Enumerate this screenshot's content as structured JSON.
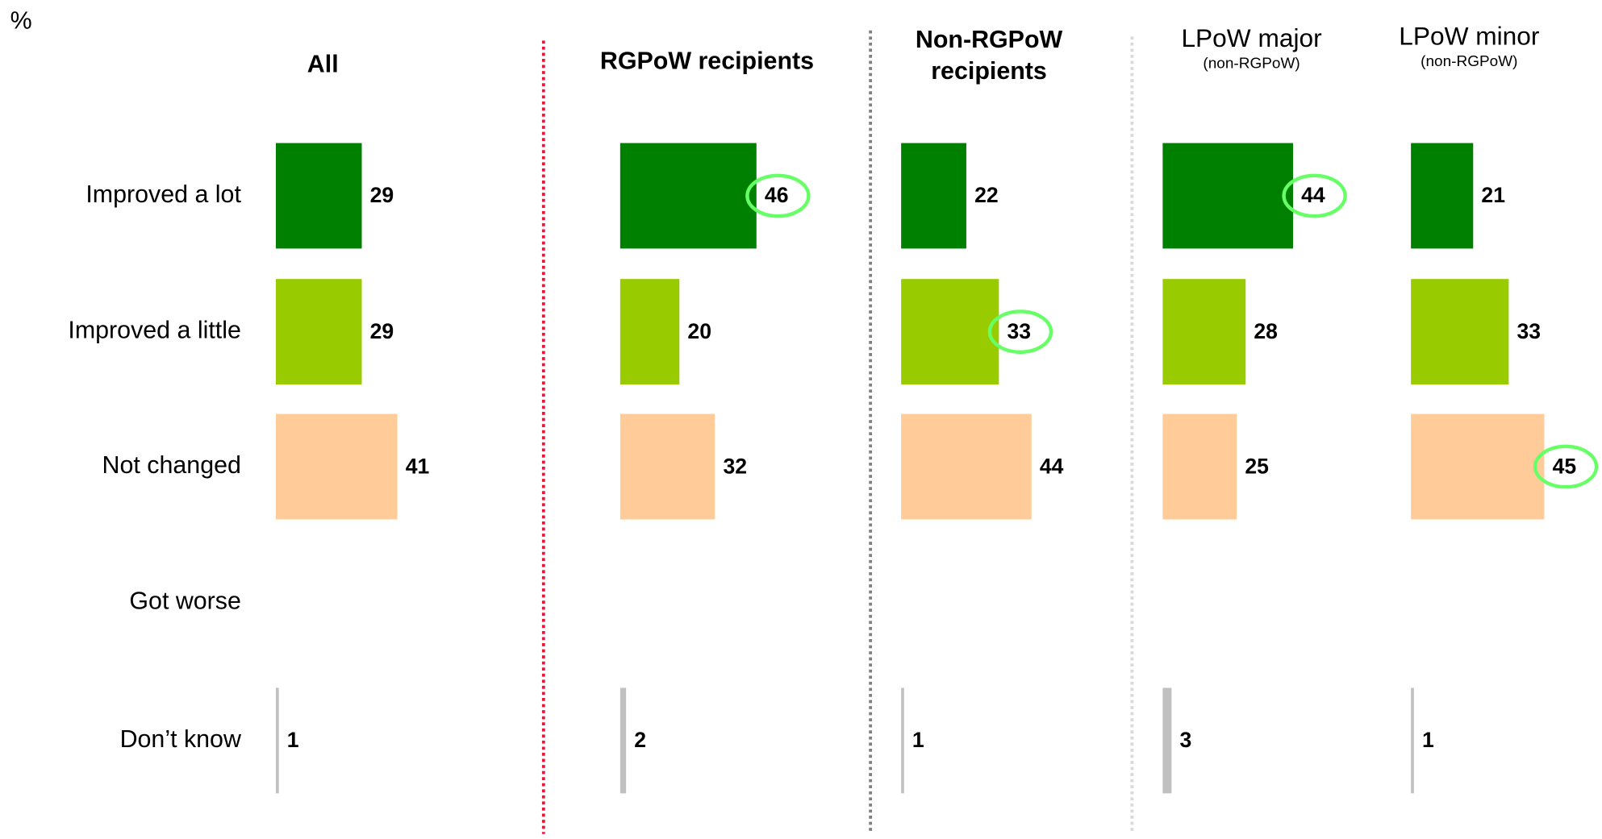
{
  "chart_data": {
    "type": "bar",
    "unit": "%",
    "categories": [
      "Improved a lot",
      "Improved a little",
      "Not changed",
      "Got worse",
      "Don’t know"
    ],
    "category_colors": [
      "#008000",
      "#99cc00",
      "#ffcc99",
      "#ff9900",
      "#c0c0c0"
    ],
    "series": [
      {
        "name": "All",
        "values": [
          29,
          29,
          41,
          null,
          1
        ],
        "highlight": []
      },
      {
        "name": "RGPoW recipients",
        "values": [
          46,
          20,
          32,
          null,
          2
        ],
        "highlight": [
          0
        ]
      },
      {
        "name": "Non-RGPoW recipients",
        "values": [
          22,
          33,
          44,
          null,
          1
        ],
        "highlight": [
          1
        ]
      },
      {
        "name": "LPoW major",
        "subtitle": "(non-RGPoW)",
        "values": [
          44,
          28,
          25,
          null,
          3
        ],
        "highlight": [
          0
        ]
      },
      {
        "name": "LPoW minor",
        "subtitle": "(non-RGPoW)",
        "values": [
          21,
          33,
          45,
          null,
          1
        ],
        "highlight": [
          2
        ]
      }
    ]
  }
}
